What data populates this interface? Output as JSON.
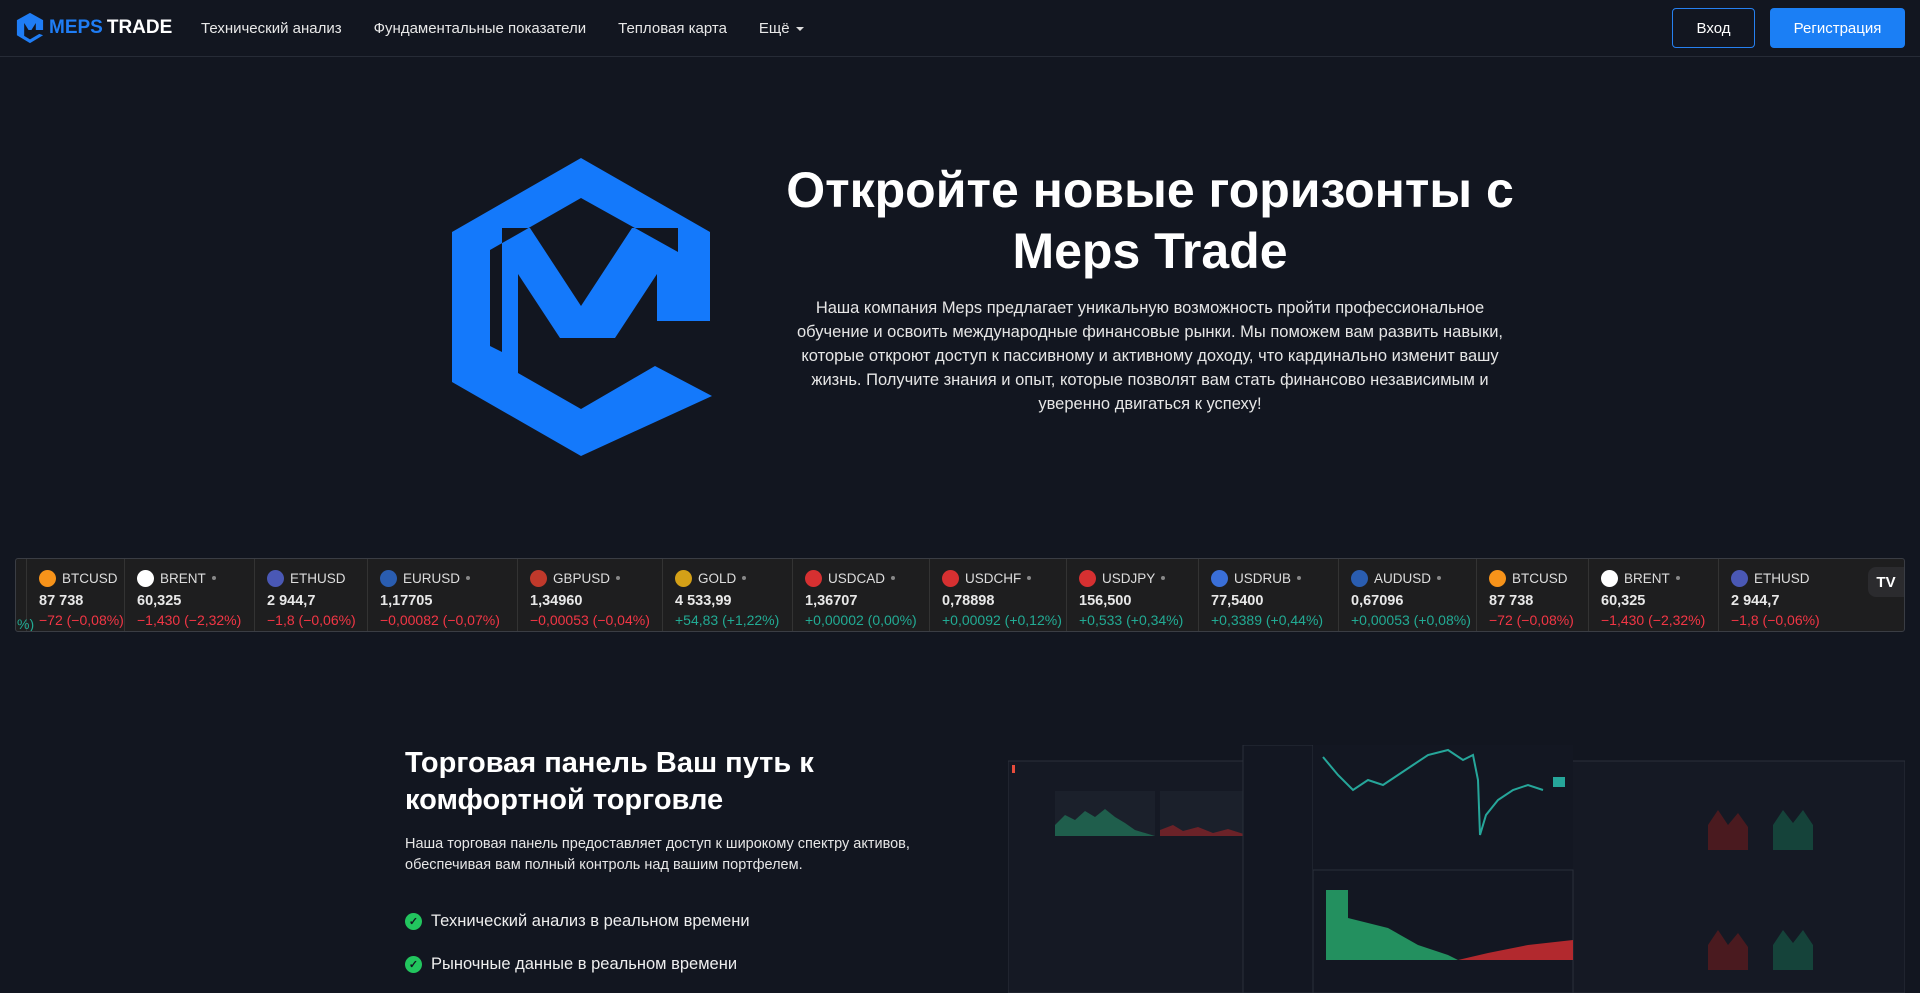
{
  "header": {
    "logo_brand": "MEPS",
    "logo_rest": "TRADE",
    "nav": [
      "Технический анализ",
      "Фундаментальные показатели",
      "Тепловая карта",
      "Ещё"
    ],
    "login": "Вход",
    "register": "Регистрация"
  },
  "hero": {
    "title": "Откройте новые горизонты с Meps Trade",
    "text": "Наша компания Meps предлагает уникальную возможность пройти профессиональное обучение и освоить международные финансовые рынки. Мы поможем вам развить навыки, которые откроют доступ к пассивному и активному доходу, что кардинально изменит вашу жизнь. Получите знания и опыт, которые позволят вам стать финансово независимым и уверенно двигаться к успеху!"
  },
  "ticker": [
    {
      "symbol": "BTCUSD",
      "icon": "bitcoin-icon",
      "color": "#f7931a",
      "price": "87 738",
      "change": "−72 (−0,08%)",
      "dir": "neg",
      "dot": false
    },
    {
      "symbol": "BRENT",
      "icon": "oil-drop-icon",
      "color": "#ffffff",
      "price": "60,325",
      "change": "−1,430 (−2,32%)",
      "dir": "neg",
      "dot": true
    },
    {
      "symbol": "ETHUSD",
      "icon": "ethereum-icon",
      "color": "#4a58b5",
      "price": "2 944,7",
      "change": "−1,8 (−0,06%)",
      "dir": "neg",
      "dot": false
    },
    {
      "symbol": "EURUSD",
      "icon": "eu-us-flag-icon",
      "color": "#2a5db0",
      "price": "1,17705",
      "change": "−0,00082 (−0,07%)",
      "dir": "neg",
      "dot": true
    },
    {
      "symbol": "GBPUSD",
      "icon": "gb-us-flag-icon",
      "color": "#c0392b",
      "price": "1,34960",
      "change": "−0,00053 (−0,04%)",
      "dir": "neg",
      "dot": true
    },
    {
      "symbol": "GOLD",
      "icon": "gold-icon",
      "color": "#d4a017",
      "price": "4 533,99",
      "change": "+54,83 (+1,22%)",
      "dir": "pos",
      "dot": true
    },
    {
      "symbol": "USDCAD",
      "icon": "us-ca-flag-icon",
      "color": "#d63031",
      "price": "1,36707",
      "change": "+0,00002 (0,00%)",
      "dir": "pos",
      "dot": true
    },
    {
      "symbol": "USDCHF",
      "icon": "us-ch-flag-icon",
      "color": "#d63031",
      "price": "0,78898",
      "change": "+0,00092 (+0,12%)",
      "dir": "pos",
      "dot": true
    },
    {
      "symbol": "USDJPY",
      "icon": "us-jp-flag-icon",
      "color": "#d63031",
      "price": "156,500",
      "change": "+0,533 (+0,34%)",
      "dir": "pos",
      "dot": true
    },
    {
      "symbol": "USDRUB",
      "icon": "us-ru-flag-icon",
      "color": "#3a6fd8",
      "price": "77,5400",
      "change": "+0,3389 (+0,44%)",
      "dir": "pos",
      "dot": true
    },
    {
      "symbol": "AUDUSD",
      "icon": "au-us-flag-icon",
      "color": "#2a5db0",
      "price": "0,67096",
      "change": "+0,00053 (+0,08%)",
      "dir": "pos",
      "dot": true
    },
    {
      "symbol": "BTCUSD",
      "icon": "bitcoin-icon",
      "color": "#f7931a",
      "price": "87 738",
      "change": "−72 (−0,08%)",
      "dir": "neg",
      "dot": false
    },
    {
      "symbol": "BRENT",
      "icon": "oil-drop-icon",
      "color": "#ffffff",
      "price": "60,325",
      "change": "−1,430 (−2,32%)",
      "dir": "neg",
      "dot": true
    },
    {
      "symbol": "ETHUSD",
      "icon": "ethereum-icon",
      "color": "#4a58b5",
      "price": "2 944,7",
      "change": "−1,8 (−0,06%)",
      "dir": "neg",
      "dot": false
    }
  ],
  "ticker_logo": "TV",
  "section": {
    "title": "Торговая панель Ваш путь к комфортной торговле",
    "text": "Наша торговая панель предоставляет доступ к широкому спектру активов, обеспечивая вам полный контроль над вашим портфелем.",
    "features": [
      "Технический анализ в реальном времени",
      "Рыночные данные в реальном времени"
    ]
  }
}
